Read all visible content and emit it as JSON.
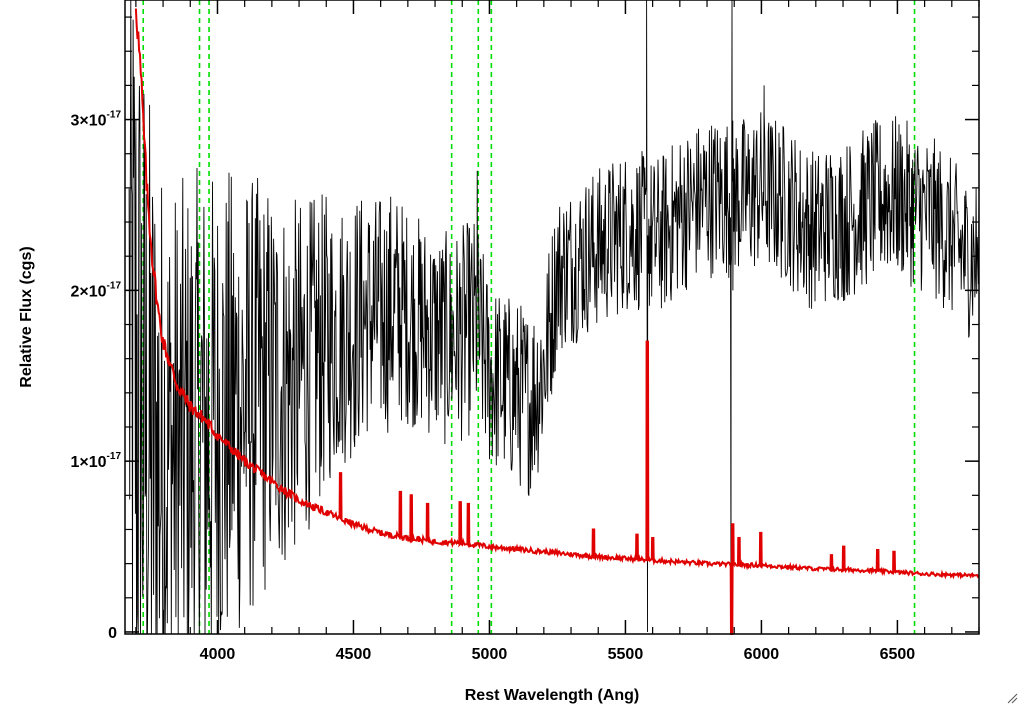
{
  "chart_data": {
    "type": "line",
    "title": "",
    "xlabel": "Rest Wavelength (Ang)",
    "ylabel": "Relative Flux (cgs)",
    "xlim": [
      3660,
      6800
    ],
    "ylim": [
      -1.2e-19,
      3.7e-17
    ],
    "x_ticks": [
      4000,
      4500,
      5000,
      5500,
      6000,
      6500
    ],
    "x_tick_labels": [
      "4000",
      "4500",
      "5000",
      "5500",
      "6000",
      "6500"
    ],
    "y_ticks": [
      0,
      1e-17,
      2e-17,
      3e-17
    ],
    "y_tick_labels": [
      {
        "mantissa": "0",
        "exponent": ""
      },
      {
        "mantissa": "1×10",
        "exponent": "-17"
      },
      {
        "mantissa": "2×10",
        "exponent": "-17"
      },
      {
        "mantissa": "3×10",
        "exponent": "-17"
      }
    ],
    "grid": false,
    "series": [
      {
        "name": "",
        "color": "#000000",
        "x": [
          3675,
          3700,
          3720,
          3740,
          3760,
          3800,
          3850,
          3900,
          3950,
          4000,
          4050,
          4100,
          4150,
          4200,
          4250,
          4300,
          4350,
          4400,
          4450,
          4500,
          4550,
          4600,
          4650,
          4700,
          4750,
          4800,
          4850,
          4900,
          4950,
          5000,
          5050,
          5100,
          5150,
          5200,
          5250,
          5300,
          5350,
          5400,
          5450,
          5500,
          5550,
          5600,
          5650,
          5700,
          5750,
          5800,
          5850,
          5900,
          5950,
          6000,
          6050,
          6100,
          6150,
          6200,
          6250,
          6300,
          6350,
          6400,
          6450,
          6500,
          6550,
          6600,
          6650,
          6700,
          6750,
          6800
        ],
        "values": [
          1.8e-17,
          1.5e-17,
          1.3e-17,
          1.1e-17,
          1e-17,
          1e-17,
          1.05e-17,
          1.1e-17,
          1.15e-17,
          1.2e-17,
          1.3e-17,
          1.35e-17,
          1.4e-17,
          1.45e-17,
          1.45e-17,
          1.5e-17,
          1.6e-17,
          1.7e-17,
          1.75e-17,
          1.8e-17,
          1.85e-17,
          1.85e-17,
          1.9e-17,
          1.85e-17,
          1.8e-17,
          1.75e-17,
          1.7e-17,
          1.75e-17,
          1.8e-17,
          1.5e-17,
          1.45e-17,
          1.4e-17,
          1.35e-17,
          1.55e-17,
          2.1e-17,
          2.15e-17,
          2.2e-17,
          2.25e-17,
          2.3e-17,
          2.35e-17,
          2.35e-17,
          2.3e-17,
          2.35e-17,
          2.45e-17,
          2.5e-17,
          2.55e-17,
          2.55e-17,
          2.55e-17,
          2.55e-17,
          2.6e-17,
          2.55e-17,
          2.5e-17,
          2.4e-17,
          2.35e-17,
          2.4e-17,
          2.4e-17,
          2.45e-17,
          2.5e-17,
          2.55e-17,
          2.55e-17,
          2.5e-17,
          2.45e-17,
          2.4e-17,
          2.3e-17,
          2.2e-17,
          2.2e-17
        ],
        "noise": [
          1.6e-17,
          1.6e-17,
          1.5e-17,
          1.4e-17,
          1.3e-17,
          1.1e-17,
          1e-17,
          1e-17,
          1e-17,
          9.5e-18,
          9e-18,
          8.5e-18,
          8e-18,
          7.5e-18,
          7e-18,
          6.5e-18,
          6e-18,
          5.5e-18,
          5e-18,
          5e-18,
          4.5e-18,
          4.5e-18,
          4.5e-18,
          4e-18,
          4e-18,
          4e-18,
          4e-18,
          4e-18,
          4e-18,
          3.5e-18,
          3.5e-18,
          3.5e-18,
          3.5e-18,
          3.5e-18,
          3e-18,
          3e-18,
          3e-18,
          3e-18,
          3e-18,
          3e-18,
          3e-18,
          3e-18,
          3e-18,
          3e-18,
          3e-18,
          3e-18,
          3e-18,
          3e-18,
          3e-18,
          3e-18,
          3e-18,
          3e-18,
          3e-18,
          3e-18,
          3e-18,
          3e-18,
          3e-18,
          3e-18,
          3e-18,
          3e-18,
          3e-18,
          3e-18,
          3e-18,
          3e-18,
          3e-18,
          3e-18
        ],
        "spikes": [
          {
            "x": 5578,
            "y": 3.7e-17
          },
          {
            "x": 5581,
            "y": 0.0
          },
          {
            "x": 5888,
            "y": 0.0
          },
          {
            "x": 5892,
            "y": 3.7e-17
          },
          {
            "x": 5895,
            "y": 2e-17
          },
          {
            "x": 4955,
            "y": 2.7e-17
          },
          {
            "x": 6010,
            "y": 3.2e-17
          }
        ]
      },
      {
        "name": "",
        "color": "#e00000",
        "x": [
          3700,
          3720,
          3740,
          3760,
          3780,
          3800,
          3850,
          3900,
          3950,
          4000,
          4100,
          4200,
          4300,
          4400,
          4500,
          4600,
          4700,
          4800,
          4900,
          5000,
          5200,
          5400,
          5600,
          5800,
          6000,
          6200,
          6400,
          6600,
          6800
        ],
        "values": [
          3.7e-17,
          3.2e-17,
          2.6e-17,
          2.2e-17,
          1.9e-17,
          1.7e-17,
          1.45e-17,
          1.32e-17,
          1.25e-17,
          1.15e-17,
          1e-17,
          8.8e-18,
          7.7e-18,
          7e-18,
          6.3e-18,
          5.8e-18,
          5.5e-18,
          5.3e-18,
          5.2e-18,
          5e-18,
          4.7e-18,
          4.4e-18,
          4.2e-18,
          4e-18,
          3.9e-18,
          3.7e-18,
          3.6e-18,
          3.4e-18,
          3.3e-18
        ],
        "spikes": [
          {
            "x": 4450,
            "y": 9.3e-18
          },
          {
            "x": 4670,
            "y": 8.2e-18
          },
          {
            "x": 4710,
            "y": 8e-18
          },
          {
            "x": 4770,
            "y": 7.5e-18
          },
          {
            "x": 4890,
            "y": 7.6e-18
          },
          {
            "x": 4920,
            "y": 7.5e-18
          },
          {
            "x": 5380,
            "y": 6e-18
          },
          {
            "x": 5540,
            "y": 5.7e-18
          },
          {
            "x": 5578,
            "y": 1.7e-17
          },
          {
            "x": 5598,
            "y": 5.5e-18
          },
          {
            "x": 5888,
            "y": -2e-19
          },
          {
            "x": 5892,
            "y": 6.3e-18
          },
          {
            "x": 5915,
            "y": 5.5e-18
          },
          {
            "x": 5995,
            "y": 5.8e-18
          },
          {
            "x": 6255,
            "y": 4.5e-18
          },
          {
            "x": 6300,
            "y": 5e-18
          },
          {
            "x": 6425,
            "y": 4.8e-18
          },
          {
            "x": 6485,
            "y": 4.7e-18
          }
        ]
      }
    ],
    "reference_lines": {
      "color": "#00dd00",
      "style": "dashed",
      "x": [
        3727,
        3934,
        3969,
        4861,
        4959,
        5007,
        6563
      ]
    }
  }
}
